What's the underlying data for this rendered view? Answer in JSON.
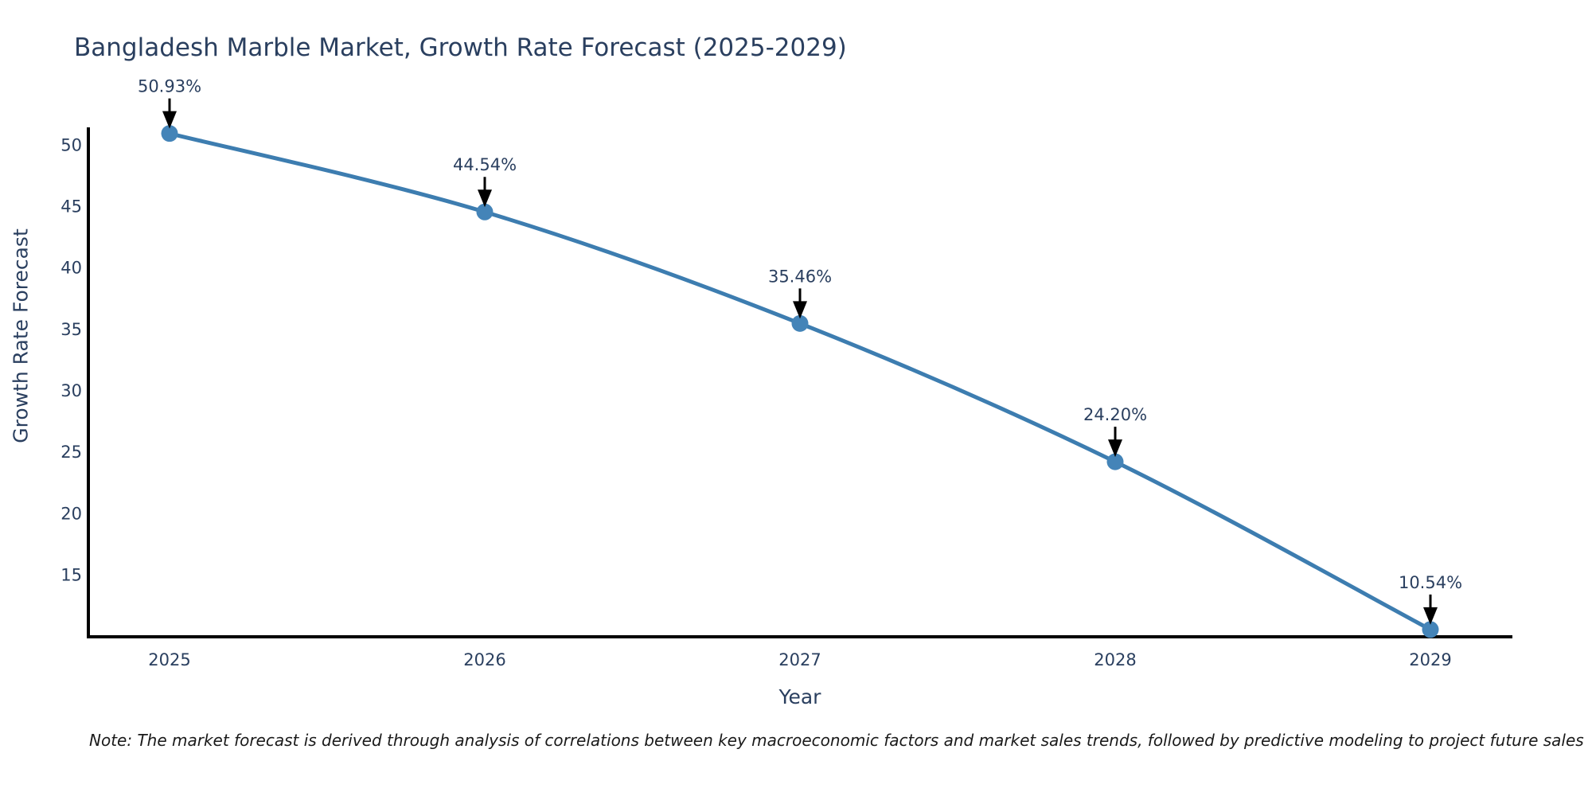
{
  "chart_data": {
    "type": "line",
    "title": "Bangladesh Marble Market, Growth Rate Forecast (2025-2029)",
    "xlabel": "Year",
    "ylabel": "Growth Rate Forecast",
    "categories": [
      "2025",
      "2026",
      "2027",
      "2028",
      "2029"
    ],
    "values": [
      50.93,
      44.54,
      35.46,
      24.2,
      10.54
    ],
    "point_labels": [
      "50.93%",
      "44.54%",
      "35.46%",
      "24.20%",
      "10.54%"
    ],
    "yticks": [
      15,
      20,
      25,
      30,
      35,
      40,
      45,
      50
    ],
    "ylim": [
      9.95,
      51.4
    ],
    "grid": false,
    "legend": "none",
    "curve": "spline",
    "line_color": "#3d7db0",
    "marker_color": "#4484b8",
    "axis_color": "#000000",
    "text_color": "#2a3f5f",
    "annotation_arrow_color": "#000000"
  },
  "note": {
    "text": "Note: The market forecast is derived through analysis of correlations between key macroeconomic factors and market sales trends, followed by predictive modeling to project future sales"
  }
}
